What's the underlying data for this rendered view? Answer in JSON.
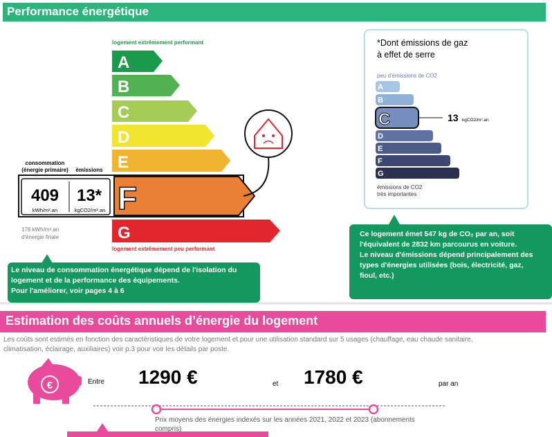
{
  "energy_section": {
    "title": "Performance énergétique",
    "top_caption": "logement extrêmement performant",
    "bottom_caption": "logement extrêmement peu performant",
    "classes": [
      "A",
      "B",
      "C",
      "D",
      "E",
      "F",
      "G"
    ],
    "consumption_label": "consommation",
    "consumption_sub": "(énergie primaire)",
    "emissions_label": "émissions",
    "consumption_value": "409",
    "consumption_unit": "kWh/m².an",
    "emissions_value": "13*",
    "emissions_unit": "kgCO2/m².an",
    "final_energy": [
      "178 kWh/m².an",
      "d'énergie finale"
    ]
  },
  "ghg_box": {
    "title": [
      "*Dont émissions de gaz",
      "à effet de serre"
    ],
    "top_caption": "peu d'émissions de CO2",
    "classes": [
      "A",
      "B",
      "C",
      "D",
      "E",
      "F",
      "G"
    ],
    "value": "13",
    "unit": "kgCO2/m².an",
    "bottom_caption": [
      "émissions de CO2",
      "très importantes"
    ]
  },
  "left_note": [
    "Le niveau de consommation énergétique dépend de l'isolation du",
    "logement et de la performance des équipements.",
    "Pour l'améliorer, voir pages 4 à 6"
  ],
  "right_note": [
    "Ce logement émet 547 kg de CO₂ par an, soit",
    "l'équivalent de 2832  km parcourus en voiture.",
    "Le niveau d'émissions dépend principalement des",
    "types d'énergies utilisées (bois, électricité, gaz,",
    "fioul, etc.)"
  ],
  "cost_section": {
    "title": "Estimation des coûts annuels d’énergie du logement",
    "description": [
      "Les coûts sont estimés en fonction des caractéristiques de votre logement et pour une utilisation standard sur 5 usages (chauffage, eau chaude sanitaire,",
      "climatisation, éclairage, auxiliaires) voir p.3 pour voir les détails par poste."
    ],
    "between": "Entre",
    "low": "1290 €",
    "and": "et",
    "high": "1780 €",
    "per_year": "par an",
    "footnote": [
      "Prix moyens des énergies indexés sur les années 2021, 2022 et 2023 (abonnements",
      "compris)"
    ]
  }
}
